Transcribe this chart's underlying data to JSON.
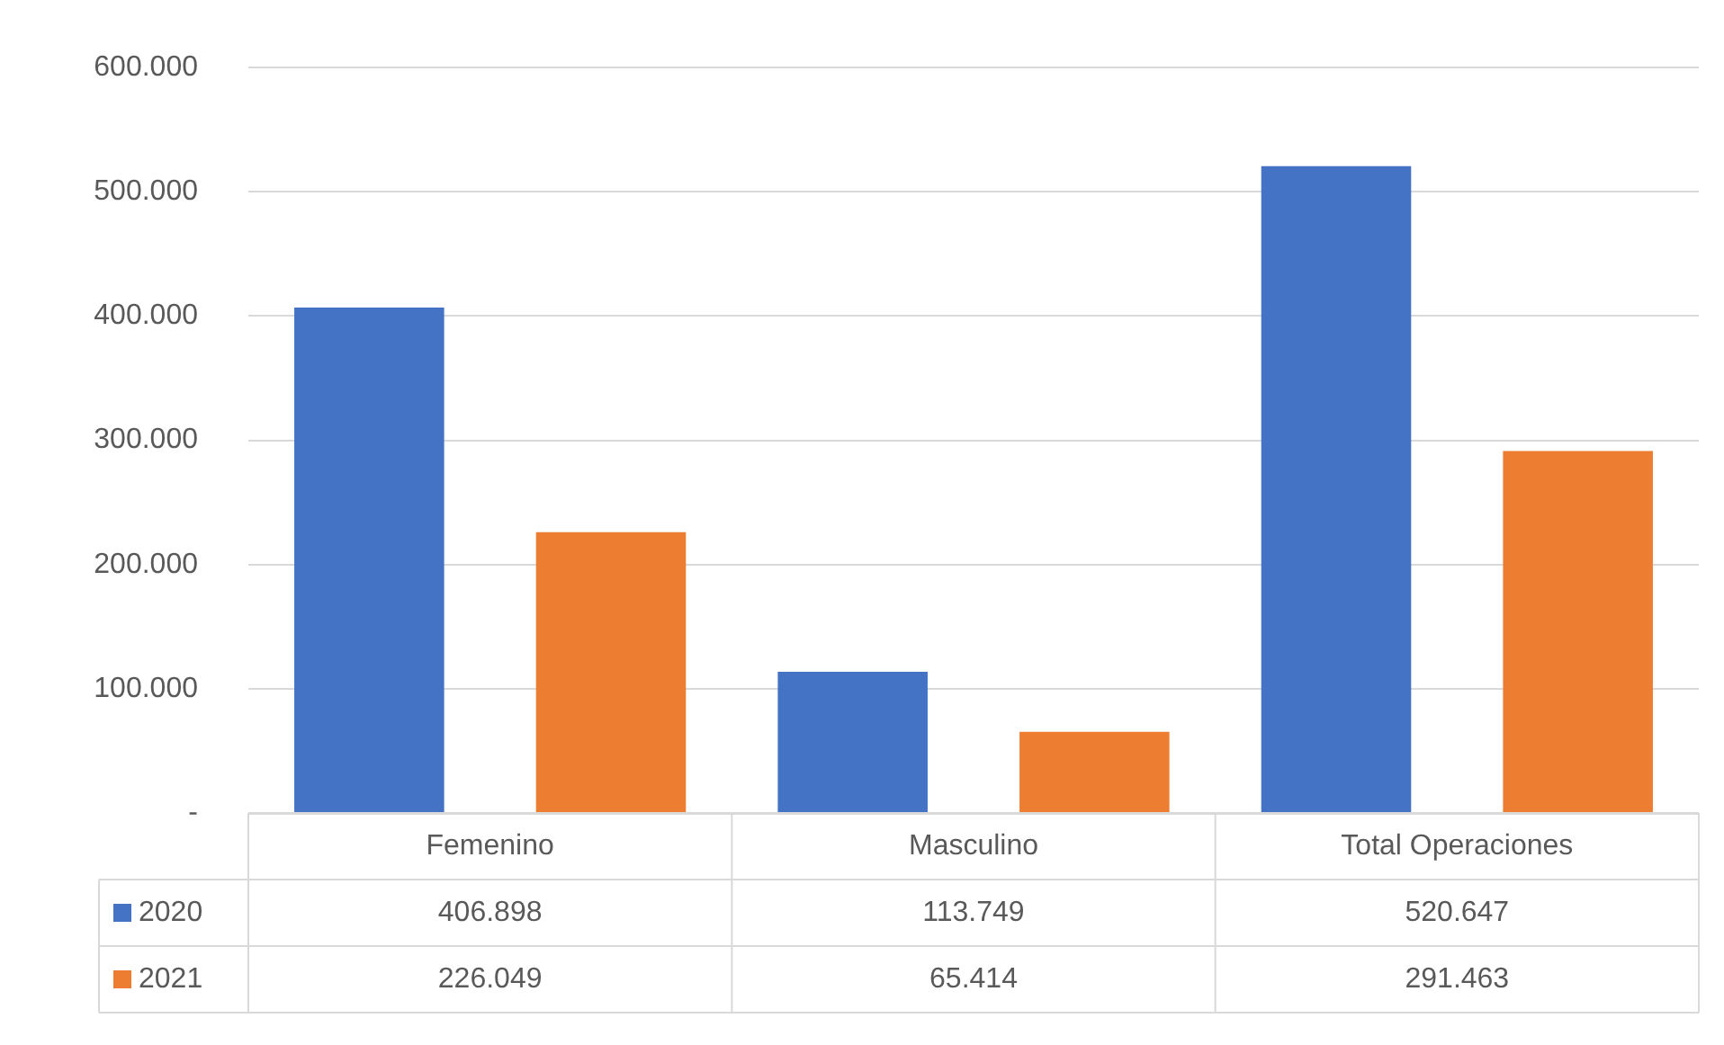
{
  "chart_data": {
    "type": "bar",
    "categories": [
      "Femenino",
      "Masculino",
      "Total Operaciones"
    ],
    "series": [
      {
        "name": "2020",
        "color": "#4472c4",
        "values": [
          406898,
          113749,
          520647
        ],
        "value_labels": [
          "406.898",
          "113.749",
          "520.647"
        ]
      },
      {
        "name": "2021",
        "color": "#ed7d31",
        "values": [
          226049,
          65414,
          291463
        ],
        "value_labels": [
          "226.049",
          "65.414",
          "291.463"
        ]
      }
    ],
    "ylim": [
      0,
      600000
    ],
    "yticks": [
      {
        "value": 0,
        "label": "-"
      },
      {
        "value": 100000,
        "label": "100.000"
      },
      {
        "value": 200000,
        "label": "200.000"
      },
      {
        "value": 300000,
        "label": "300.000"
      },
      {
        "value": 400000,
        "label": "400.000"
      },
      {
        "value": 500000,
        "label": "500.000"
      },
      {
        "value": 600000,
        "label": "600.000"
      }
    ],
    "grid": "y",
    "legend": "bottom"
  }
}
